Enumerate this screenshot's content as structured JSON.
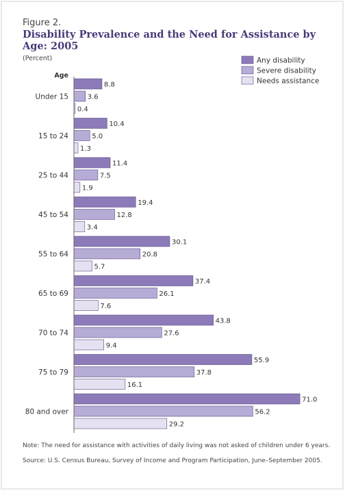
{
  "figure": {
    "label": "Figure 2.",
    "title": "Disability Prevalence and the Need for Assistance by Age: 2005",
    "unit": "(Percent)",
    "note": "Note: The need for assistance with activities of daily living was not asked of children under 6 years.",
    "source": "Source: U.S. Census Bureau, Survey of Income and Program Participation, June–September 2005."
  },
  "chart_data": {
    "type": "bar",
    "orientation": "horizontal",
    "y_axis_title": "Age",
    "categories": [
      "Under 15",
      "15 to 24",
      "25 to 44",
      "45 to 54",
      "55 to 64",
      "65 to 69",
      "70 to 74",
      "75 to 79",
      "80 and over"
    ],
    "series": [
      {
        "name": "Any disability",
        "color": "#8c7bb8",
        "values": [
          8.8,
          10.4,
          11.4,
          19.4,
          30.1,
          37.4,
          43.8,
          55.9,
          71.0
        ]
      },
      {
        "name": "Severe disability",
        "color": "#b7acd6",
        "values": [
          3.6,
          5.0,
          7.5,
          12.8,
          20.8,
          26.1,
          27.6,
          37.8,
          56.2
        ]
      },
      {
        "name": "Needs assistance",
        "color": "#e6e1f0",
        "values": [
          0.4,
          1.3,
          1.9,
          3.4,
          5.7,
          7.6,
          9.4,
          16.1,
          29.2
        ]
      }
    ],
    "xlim": [
      0,
      71
    ],
    "legend_position": "top-right",
    "value_labels": true,
    "grid": false
  }
}
